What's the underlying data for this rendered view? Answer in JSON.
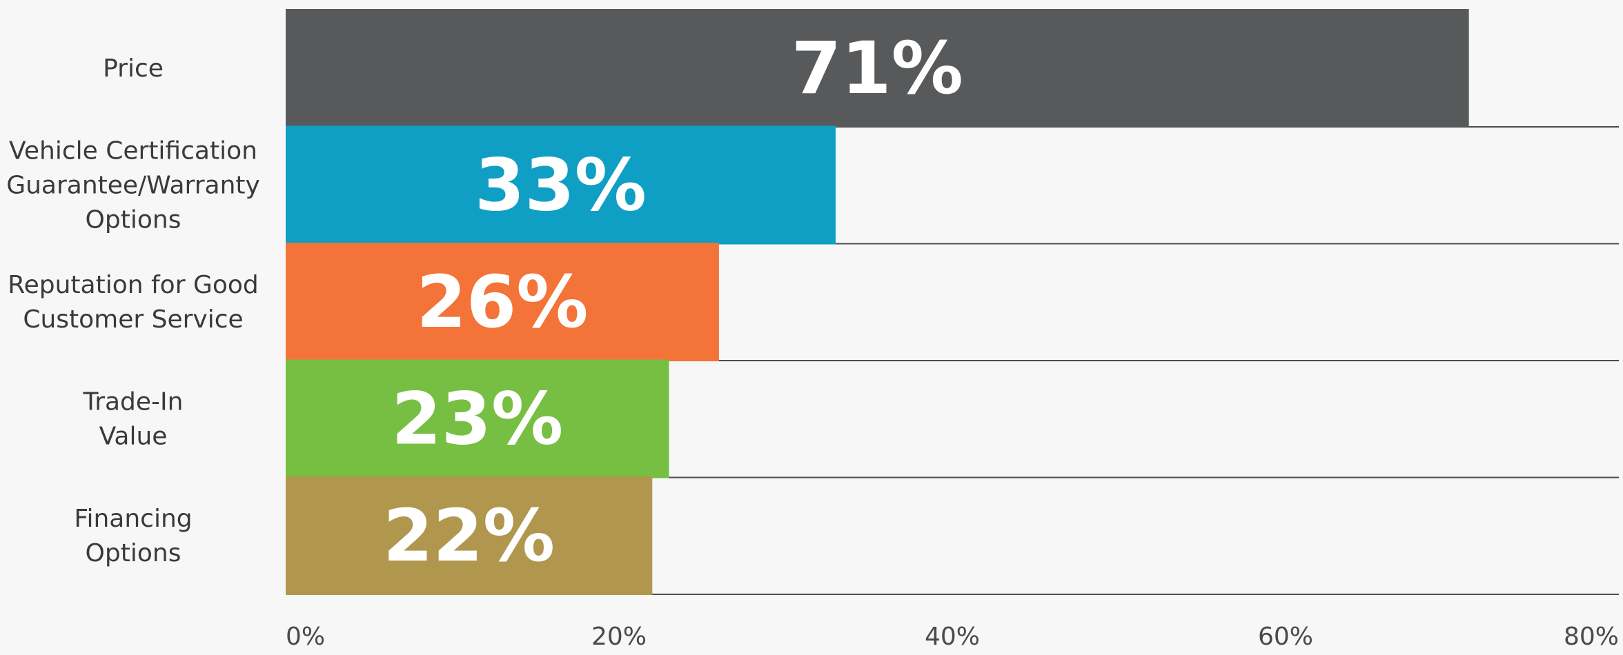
{
  "chart_data": {
    "type": "bar",
    "orientation": "horizontal",
    "categories": [
      [
        "Price"
      ],
      [
        "Vehicle Certification",
        "Guarantee/Warranty",
        "Options"
      ],
      [
        "Reputation for Good",
        "Customer Service"
      ],
      [
        "Trade-In",
        "Value"
      ],
      [
        "Financing",
        "Options"
      ]
    ],
    "values": [
      71,
      33,
      26,
      23,
      22
    ],
    "data_labels": [
      "71%",
      "33%",
      "26%",
      "23%",
      "22%"
    ],
    "colors": [
      "#58595b",
      "#109fc4",
      "#f37338",
      "#76bf43",
      "#b1964e"
    ],
    "xlim": [
      0,
      80
    ],
    "xticks": [
      0,
      20,
      40,
      60,
      80
    ],
    "xtick_labels": [
      "0%",
      "20%",
      "40%",
      "60%",
      "80%"
    ],
    "grid": "horizontal row separators",
    "title": "",
    "xlabel": "",
    "ylabel": ""
  }
}
